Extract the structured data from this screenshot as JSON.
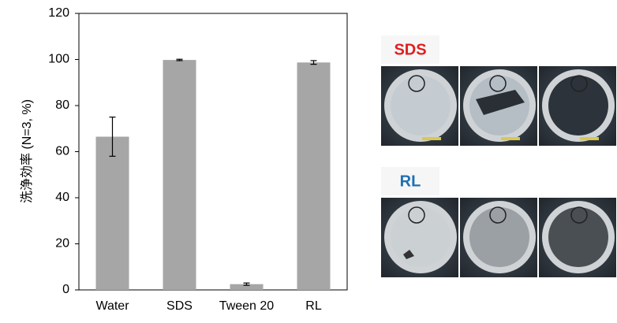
{
  "chart_data": {
    "type": "bar",
    "ylabel": "洗浄効率 (N=3, %)",
    "categories": [
      "Water",
      "SDS",
      "Tween 20",
      "RL"
    ],
    "values": [
      66.5,
      99.8,
      2.5,
      98.7
    ],
    "errors": [
      8.5,
      0.3,
      0.5,
      0.8
    ],
    "color": "#a6a6a6",
    "ylim": [
      0,
      120
    ],
    "yticks": [
      0,
      20,
      40,
      60,
      80,
      100,
      120
    ]
  },
  "panels": [
    {
      "label": "SDS",
      "color": "#e02020"
    },
    {
      "label": "RL",
      "color": "#1f6fb2"
    }
  ]
}
